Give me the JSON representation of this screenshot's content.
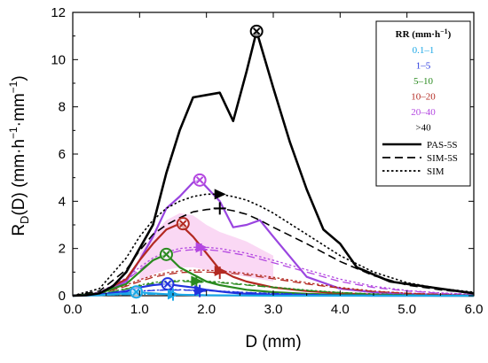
{
  "chart_data": {
    "type": "line",
    "xlabel": "D (mm)",
    "ylabel": "R_D(D) (mm·h⁻¹·mm⁻¹)",
    "ylabel_parts": {
      "main": "R",
      "sub": "D",
      "args": "(D) (mm·h",
      "exp1": "−1",
      "dot": "·mm",
      "exp2": "−1",
      "close": ")"
    },
    "xlim": [
      0,
      6
    ],
    "ylim": [
      0,
      12
    ],
    "xticks": [
      "0.0",
      "1.0",
      "2.0",
      "3.0",
      "4.0",
      "5.0",
      "6.0"
    ],
    "yticks": [
      "0",
      "2",
      "4",
      "6",
      "8",
      "10",
      "12"
    ],
    "legend": {
      "placement": "top-right",
      "title_main": "RR (mm·h",
      "title_exp": "−1",
      "title_close": ")",
      "classes": [
        {
          "label": "0.1–1",
          "color": "#1aa7e6"
        },
        {
          "label": "1–5",
          "color": "#2233dd"
        },
        {
          "label": "5–10",
          "color": "#2a8a1f"
        },
        {
          "label": "10–20",
          "color": "#b32a22"
        },
        {
          "label": "20–40",
          "color": "#b347e0"
        },
        {
          "label": ">40",
          "color": "#000000"
        }
      ],
      "styles": [
        {
          "label": "PAS-5S",
          "dash": "solid"
        },
        {
          "label": "SIM-5S",
          "dash": "dashed"
        },
        {
          "label": "SIM",
          "dash": "dotted"
        }
      ]
    },
    "series": [
      {
        "rr_class": ">40",
        "style": "PAS-5S",
        "color": "#000000",
        "x": [
          0,
          0.2,
          0.4,
          0.6,
          0.8,
          1.0,
          1.2,
          1.4,
          1.6,
          1.8,
          2.0,
          2.2,
          2.4,
          2.6,
          2.75,
          3.0,
          3.25,
          3.5,
          3.75,
          4.0,
          4.25,
          4.5,
          4.75,
          5.0,
          5.5,
          6.0
        ],
        "y": [
          0,
          0.02,
          0.1,
          0.4,
          1.0,
          2.0,
          3.0,
          5.2,
          7.0,
          8.4,
          8.5,
          8.6,
          7.4,
          9.5,
          11.2,
          8.8,
          6.5,
          4.5,
          2.8,
          2.2,
          1.2,
          0.9,
          0.6,
          0.5,
          0.3,
          0.1
        ]
      },
      {
        "rr_class": ">40",
        "style": "SIM-5S",
        "color": "#000000",
        "x": [
          0,
          0.4,
          0.8,
          1.0,
          1.2,
          1.4,
          1.6,
          1.8,
          2.0,
          2.2,
          2.4,
          2.6,
          2.8,
          3.0,
          3.5,
          4.0,
          4.5,
          5.0,
          5.5,
          6.0
        ],
        "y": [
          0,
          0.2,
          1.1,
          1.9,
          2.6,
          3.0,
          3.3,
          3.55,
          3.65,
          3.7,
          3.6,
          3.45,
          3.2,
          2.9,
          2.2,
          1.45,
          0.85,
          0.45,
          0.25,
          0.1
        ]
      },
      {
        "rr_class": ">40",
        "style": "SIM",
        "color": "#000000",
        "x": [
          0,
          0.4,
          0.8,
          1.0,
          1.2,
          1.4,
          1.6,
          1.8,
          2.0,
          2.2,
          2.4,
          2.6,
          2.8,
          3.0,
          3.5,
          4.0,
          4.5,
          5.0,
          5.5,
          6.0
        ],
        "y": [
          0,
          0.3,
          1.6,
          2.5,
          3.2,
          3.7,
          4.0,
          4.2,
          4.3,
          4.3,
          4.2,
          4.05,
          3.8,
          3.5,
          2.6,
          1.7,
          1.0,
          0.55,
          0.3,
          0.15
        ]
      },
      {
        "rr_class": "20–40",
        "style": "PAS-5S",
        "color": "#9a45e0",
        "x": [
          0,
          0.4,
          0.8,
          1.0,
          1.2,
          1.4,
          1.6,
          1.8,
          1.9,
          2.1,
          2.2,
          2.4,
          2.6,
          2.8,
          3.0,
          3.5,
          4.0,
          4.5,
          5.0,
          5.5,
          6.0
        ],
        "y": [
          0,
          0.1,
          0.6,
          1.5,
          2.5,
          3.7,
          4.2,
          4.8,
          4.9,
          4.3,
          4.0,
          2.9,
          3.0,
          3.2,
          2.5,
          0.8,
          0.3,
          0.15,
          0.08,
          0.04,
          0.01
        ]
      },
      {
        "rr_class": "20–40",
        "style": "SIM-5S",
        "color": "#b347e0",
        "x": [
          0,
          0.4,
          0.8,
          1.0,
          1.2,
          1.4,
          1.6,
          1.8,
          2.0,
          2.2,
          2.4,
          2.6,
          3.0,
          3.5,
          4.0,
          4.5,
          5.0,
          5.5,
          6.0
        ],
        "y": [
          0,
          0.1,
          0.65,
          1.1,
          1.5,
          1.75,
          1.9,
          1.95,
          1.95,
          1.9,
          1.8,
          1.7,
          1.4,
          1.0,
          0.6,
          0.35,
          0.2,
          0.1,
          0.05
        ]
      },
      {
        "rr_class": "20–40",
        "style": "SIM",
        "color": "#b347e0",
        "x": [
          0,
          0.4,
          0.8,
          1.0,
          1.2,
          1.4,
          1.6,
          1.8,
          2.0,
          2.2,
          2.4,
          2.6,
          3.0,
          3.5,
          4.0,
          4.5,
          5.0,
          5.5,
          6.0
        ],
        "y": [
          0,
          0.15,
          0.75,
          1.2,
          1.6,
          1.85,
          2.0,
          2.05,
          2.05,
          2.0,
          1.9,
          1.8,
          1.5,
          1.1,
          0.7,
          0.4,
          0.22,
          0.12,
          0.06
        ]
      },
      {
        "rr_class": "10–20",
        "style": "PAS-5S",
        "color": "#b32a22",
        "x": [
          0,
          0.4,
          0.8,
          1.0,
          1.2,
          1.4,
          1.6,
          1.8,
          2.0,
          2.2,
          2.4,
          2.6,
          3.0,
          3.5,
          4.0,
          4.5,
          5.0,
          5.5,
          6.0
        ],
        "y": [
          0,
          0.1,
          0.7,
          1.5,
          2.2,
          2.8,
          3.05,
          2.5,
          1.8,
          1.1,
          0.8,
          0.6,
          0.35,
          0.2,
          0.1,
          0.05,
          0.02,
          0.01,
          0
        ]
      },
      {
        "rr_class": "10–20",
        "style": "SIM-5S",
        "color": "#b32a22",
        "x": [
          0,
          0.4,
          0.8,
          1.0,
          1.2,
          1.4,
          1.6,
          1.8,
          2.0,
          2.2,
          2.4,
          2.6,
          3.0,
          3.5,
          4.0,
          4.5,
          5.0,
          5.5,
          6.0
        ],
        "y": [
          0,
          0.08,
          0.4,
          0.6,
          0.78,
          0.9,
          0.98,
          1.0,
          1.0,
          0.98,
          0.94,
          0.88,
          0.72,
          0.5,
          0.32,
          0.18,
          0.1,
          0.05,
          0.02
        ]
      },
      {
        "rr_class": "10–20",
        "style": "SIM",
        "color": "#b32a22",
        "x": [
          0,
          0.4,
          0.8,
          1.0,
          1.2,
          1.4,
          1.6,
          1.8,
          2.0,
          2.2,
          2.4,
          2.6,
          3.0,
          3.5,
          4.0,
          4.5,
          5.0,
          5.5,
          6.0
        ],
        "y": [
          0,
          0.1,
          0.45,
          0.68,
          0.85,
          0.97,
          1.05,
          1.08,
          1.08,
          1.05,
          1.0,
          0.94,
          0.78,
          0.55,
          0.35,
          0.2,
          0.11,
          0.06,
          0.03
        ]
      },
      {
        "rr_class": "5–10",
        "style": "PAS-5S",
        "color": "#2a8a1f",
        "x": [
          0,
          0.4,
          0.8,
          1.0,
          1.2,
          1.4,
          1.6,
          1.8,
          2.0,
          2.2,
          2.4,
          2.6,
          3.0,
          3.5,
          4.0,
          4.5,
          5.0,
          5.5,
          6.0
        ],
        "y": [
          0,
          0.1,
          0.5,
          1.0,
          1.5,
          1.75,
          1.2,
          0.9,
          0.6,
          0.45,
          0.35,
          0.25,
          0.15,
          0.08,
          0.04,
          0.02,
          0.01,
          0,
          0
        ]
      },
      {
        "rr_class": "5–10",
        "style": "SIM-5S",
        "color": "#2a8a1f",
        "x": [
          0,
          0.4,
          0.8,
          1.0,
          1.2,
          1.4,
          1.6,
          1.8,
          2.0,
          2.2,
          2.4,
          2.6,
          3.0,
          3.5,
          4.0,
          4.5,
          5.0,
          5.5,
          6.0
        ],
        "y": [
          0,
          0.06,
          0.28,
          0.42,
          0.52,
          0.58,
          0.6,
          0.6,
          0.58,
          0.55,
          0.5,
          0.45,
          0.35,
          0.22,
          0.13,
          0.07,
          0.04,
          0.02,
          0.01
        ]
      },
      {
        "rr_class": "5–10",
        "style": "SIM",
        "color": "#2a8a1f",
        "x": [
          0,
          0.4,
          0.8,
          1.0,
          1.2,
          1.4,
          1.6,
          1.8,
          2.0,
          2.2,
          2.4,
          2.6,
          3.0,
          3.5,
          4.0,
          4.5,
          5.0,
          5.5,
          6.0
        ],
        "y": [
          0,
          0.07,
          0.3,
          0.45,
          0.56,
          0.62,
          0.64,
          0.64,
          0.62,
          0.58,
          0.53,
          0.47,
          0.37,
          0.24,
          0.14,
          0.08,
          0.04,
          0.02,
          0.01
        ]
      },
      {
        "rr_class": "1–5",
        "style": "PAS-5S",
        "color": "#2233dd",
        "x": [
          0,
          0.4,
          0.8,
          1.0,
          1.2,
          1.4,
          1.6,
          1.8,
          2.0,
          2.2,
          2.4,
          2.6,
          3.0,
          3.5,
          4.0,
          4.5,
          5.0,
          5.5,
          6.0
        ],
        "y": [
          0,
          0.05,
          0.2,
          0.35,
          0.45,
          0.5,
          0.42,
          0.35,
          0.25,
          0.18,
          0.12,
          0.08,
          0.05,
          0.02,
          0.01,
          0,
          0,
          0,
          0
        ]
      },
      {
        "rr_class": "1–5",
        "style": "SIM-5S",
        "color": "#2233dd",
        "x": [
          0,
          0.4,
          0.8,
          1.0,
          1.2,
          1.4,
          1.6,
          1.8,
          2.0,
          2.2,
          2.4,
          2.6,
          3.0,
          3.5,
          4.0,
          4.5,
          5.0,
          5.5,
          6.0
        ],
        "y": [
          0,
          0.04,
          0.14,
          0.19,
          0.22,
          0.24,
          0.24,
          0.23,
          0.21,
          0.19,
          0.16,
          0.13,
          0.09,
          0.05,
          0.03,
          0.01,
          0.01,
          0,
          0
        ]
      },
      {
        "rr_class": "1–5",
        "style": "SIM",
        "color": "#2233dd",
        "x": [
          0,
          0.4,
          0.8,
          1.0,
          1.2,
          1.4,
          1.6,
          1.8,
          2.0,
          2.2,
          2.4,
          2.6,
          3.0,
          3.5,
          4.0,
          4.5,
          5.0,
          5.5,
          6.0
        ],
        "y": [
          0,
          0.05,
          0.15,
          0.2,
          0.23,
          0.25,
          0.25,
          0.24,
          0.22,
          0.2,
          0.17,
          0.14,
          0.1,
          0.06,
          0.03,
          0.02,
          0.01,
          0,
          0
        ]
      },
      {
        "rr_class": "0.1–1",
        "style": "PAS-5S",
        "color": "#1aa7e6",
        "x": [
          0,
          0.4,
          0.8,
          0.95,
          1.1,
          1.3,
          1.5,
          1.8,
          2.0,
          2.4,
          3.0,
          4.0,
          5.0,
          6.0
        ],
        "y": [
          0,
          0.02,
          0.1,
          0.16,
          0.12,
          0.08,
          0.05,
          0.03,
          0.02,
          0.01,
          0,
          0,
          0,
          0
        ]
      },
      {
        "rr_class": "0.1–1",
        "style": "SIM-5S",
        "color": "#1aa7e6",
        "x": [
          0,
          0.4,
          0.8,
          1.0,
          1.2,
          1.4,
          1.6,
          1.8,
          2.0,
          2.4,
          3.0,
          4.0,
          5.0,
          6.0
        ],
        "y": [
          0,
          0.02,
          0.05,
          0.06,
          0.06,
          0.06,
          0.05,
          0.04,
          0.03,
          0.02,
          0.01,
          0,
          0,
          0
        ]
      },
      {
        "rr_class": "0.1–1",
        "style": "SIM",
        "color": "#1aa7e6",
        "x": [
          0,
          0.4,
          0.8,
          1.0,
          1.2,
          1.4,
          1.6,
          1.8,
          2.0,
          2.4,
          3.0,
          4.0,
          5.0,
          6.0
        ],
        "y": [
          0,
          0.02,
          0.05,
          0.065,
          0.065,
          0.06,
          0.055,
          0.045,
          0.035,
          0.02,
          0.01,
          0,
          0,
          0
        ]
      }
    ],
    "markers": [
      {
        "rr_class": ">40",
        "kind": "circle-x",
        "x": 2.75,
        "y": 11.2,
        "color": "#000000"
      },
      {
        "rr_class": ">40",
        "kind": "triangle",
        "x": 2.2,
        "y": 4.3,
        "color": "#000000"
      },
      {
        "rr_class": ">40",
        "kind": "plus",
        "x": 2.2,
        "y": 3.7,
        "color": "#000000"
      },
      {
        "rr_class": "20–40",
        "kind": "circle-x",
        "x": 1.9,
        "y": 4.9,
        "color": "#b347e0"
      },
      {
        "rr_class": "20–40",
        "kind": "triangle",
        "x": 1.92,
        "y": 2.05,
        "color": "#b347e0"
      },
      {
        "rr_class": "20–40",
        "kind": "plus",
        "x": 1.92,
        "y": 1.95,
        "color": "#b347e0"
      },
      {
        "rr_class": "10–20",
        "kind": "circle-x",
        "x": 1.65,
        "y": 3.05,
        "color": "#b32a22"
      },
      {
        "rr_class": "10–20",
        "kind": "triangle",
        "x": 2.2,
        "y": 1.05,
        "color": "#b32a22"
      },
      {
        "rr_class": "10–20",
        "kind": "plus",
        "x": 2.2,
        "y": 0.97,
        "color": "#b32a22"
      },
      {
        "rr_class": "5–10",
        "kind": "circle-x",
        "x": 1.4,
        "y": 1.75,
        "color": "#2a8a1f"
      },
      {
        "rr_class": "5–10",
        "kind": "triangle",
        "x": 1.85,
        "y": 0.62,
        "color": "#2a8a1f"
      },
      {
        "rr_class": "5–10",
        "kind": "plus",
        "x": 1.85,
        "y": 0.58,
        "color": "#2a8a1f"
      },
      {
        "rr_class": "1–5",
        "kind": "circle-x",
        "x": 1.42,
        "y": 0.5,
        "color": "#2233dd"
      },
      {
        "rr_class": "1–5",
        "kind": "triangle",
        "x": 1.9,
        "y": 0.22,
        "color": "#2233dd"
      },
      {
        "rr_class": "1–5",
        "kind": "plus",
        "x": 1.9,
        "y": 0.2,
        "color": "#2233dd"
      },
      {
        "rr_class": "0.1–1",
        "kind": "circle-x",
        "x": 0.95,
        "y": 0.16,
        "color": "#1aa7e6"
      },
      {
        "rr_class": "0.1–1",
        "kind": "triangle",
        "x": 1.5,
        "y": 0.06,
        "color": "#1aa7e6"
      },
      {
        "rr_class": "0.1–1",
        "kind": "plus",
        "x": 1.5,
        "y": 0.05,
        "color": "#1aa7e6"
      }
    ],
    "bands": [
      {
        "rr_class": "20–40",
        "color": "#f4a8e6",
        "x": [
          1.0,
          1.2,
          1.4,
          1.6,
          1.8,
          2.0,
          2.2,
          2.4,
          2.6,
          2.8,
          3.0
        ],
        "upper": [
          1.8,
          2.6,
          3.2,
          3.5,
          3.4,
          3.0,
          2.7,
          2.5,
          2.3,
          2.0,
          1.7
        ],
        "lower": [
          0.6,
          0.9,
          1.1,
          1.2,
          1.2,
          1.1,
          1.0,
          0.9,
          0.8,
          0.7,
          0.6
        ]
      }
    ]
  }
}
